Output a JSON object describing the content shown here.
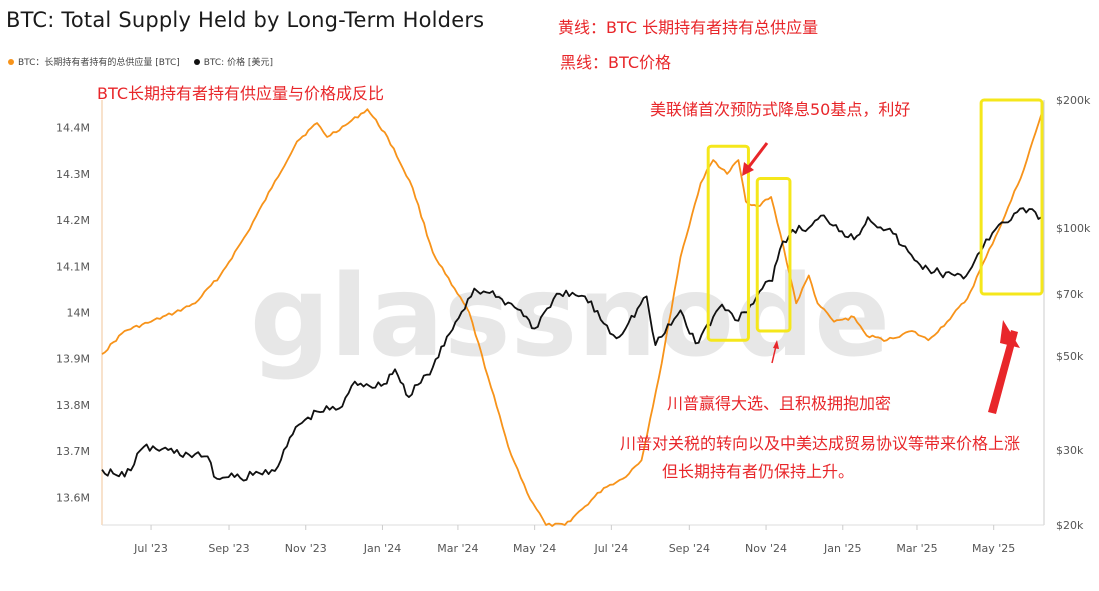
{
  "title": "BTC: Total Supply Held by Long-Term Holders",
  "legend": {
    "items": [
      {
        "label": "BTC：长期持有者持有的总供应量 [BTC]",
        "color": "#f7931a"
      },
      {
        "label": "BTC: 价格 [美元]",
        "color": "#111111"
      }
    ]
  },
  "watermark": "glassnode",
  "annotations": {
    "yellow_line_note": "黄线：BTC 长期持有者持有总供应量",
    "black_line_note": "黑线：BTC价格",
    "inverse_note": "BTC长期持有者持有供应量与价格成反比",
    "fed_note": "美联储首次预防式降息50基点，利好",
    "trump_note": "川普赢得大选、且积极拥抱加密",
    "tariff_note_1": "川普对关税的转向以及中美达成贸易协议等带来价格上涨",
    "tariff_note_2": "但长期持有者仍保持上升。"
  },
  "colors": {
    "supply": "#f7931a",
    "price": "#111111",
    "highlight": "#f5e71b",
    "annotation": "#e8262a"
  },
  "chart_data": {
    "type": "line",
    "x_tick_labels": [
      "Jul '23",
      "Sep '23",
      "Nov '23",
      "Jan '24",
      "Mar '24",
      "May '24",
      "Jul '24",
      "Sep '24",
      "Nov '24",
      "Jan '25",
      "Mar '25",
      "May '25"
    ],
    "y_left_ticks": [
      "13.6M",
      "13.7M",
      "13.8M",
      "13.9M",
      "14M",
      "14.1M",
      "14.2M",
      "14.3M",
      "14.4M"
    ],
    "y_right_ticks": [
      "$20k",
      "$30k",
      "$50k",
      "$70k",
      "$100k",
      "$200k"
    ],
    "y_right_scale": "log",
    "ylim_left": [
      13.54,
      14.46
    ],
    "ylim_right": [
      20000,
      200000
    ],
    "xlim": [
      "2023-05-23",
      "2025-06-10"
    ],
    "series": [
      {
        "name": "BTC：长期持有者持有的总供应量 [BTC]",
        "axis": "left",
        "points": [
          [
            "2023-05-23",
            13.91
          ],
          [
            "2023-06-10",
            13.96
          ],
          [
            "2023-07-01",
            13.98
          ],
          [
            "2023-07-20",
            14.0
          ],
          [
            "2023-08-05",
            14.02
          ],
          [
            "2023-08-25",
            14.08
          ],
          [
            "2023-09-15",
            14.17
          ],
          [
            "2023-10-05",
            14.27
          ],
          [
            "2023-10-25",
            14.37
          ],
          [
            "2023-11-10",
            14.41
          ],
          [
            "2023-11-18",
            14.38
          ],
          [
            "2023-12-05",
            14.41
          ],
          [
            "2023-12-20",
            14.44
          ],
          [
            "2024-01-05",
            14.38
          ],
          [
            "2024-01-25",
            14.27
          ],
          [
            "2024-02-10",
            14.13
          ],
          [
            "2024-02-25",
            14.06
          ],
          [
            "2024-03-10",
            14.0
          ],
          [
            "2024-03-25",
            13.86
          ],
          [
            "2024-04-10",
            13.71
          ],
          [
            "2024-04-25",
            13.61
          ],
          [
            "2024-05-10",
            13.54
          ],
          [
            "2024-05-25",
            13.54
          ],
          [
            "2024-06-10",
            13.58
          ],
          [
            "2024-06-25",
            13.62
          ],
          [
            "2024-07-10",
            13.64
          ],
          [
            "2024-07-25",
            13.68
          ],
          [
            "2024-08-10",
            13.89
          ],
          [
            "2024-08-25",
            14.12
          ],
          [
            "2024-09-10",
            14.28
          ],
          [
            "2024-09-20",
            14.33
          ],
          [
            "2024-10-01",
            14.3
          ],
          [
            "2024-10-10",
            14.33
          ],
          [
            "2024-10-16",
            14.24
          ],
          [
            "2024-10-25",
            14.23
          ],
          [
            "2024-11-05",
            14.25
          ],
          [
            "2024-11-15",
            14.14
          ],
          [
            "2024-11-25",
            14.02
          ],
          [
            "2024-12-05",
            14.08
          ],
          [
            "2024-12-12",
            14.02
          ],
          [
            "2024-12-25",
            13.98
          ],
          [
            "2025-01-10",
            13.99
          ],
          [
            "2025-01-20",
            13.95
          ],
          [
            "2025-02-05",
            13.94
          ],
          [
            "2025-02-25",
            13.96
          ],
          [
            "2025-03-10",
            13.94
          ],
          [
            "2025-03-25",
            13.98
          ],
          [
            "2025-04-10",
            14.03
          ],
          [
            "2025-04-25",
            14.12
          ],
          [
            "2025-05-10",
            14.21
          ],
          [
            "2025-05-25",
            14.31
          ],
          [
            "2025-06-08",
            14.43
          ]
        ]
      },
      {
        "name": "BTC: 价格 [美元]",
        "axis": "right",
        "points": [
          [
            "2023-05-23",
            27000
          ],
          [
            "2023-06-10",
            26000
          ],
          [
            "2023-06-25",
            30500
          ],
          [
            "2023-07-10",
            30200
          ],
          [
            "2023-07-31",
            29300
          ],
          [
            "2023-08-15",
            29000
          ],
          [
            "2023-08-20",
            26000
          ],
          [
            "2023-09-10",
            25800
          ],
          [
            "2023-09-25",
            26500
          ],
          [
            "2023-10-10",
            27500
          ],
          [
            "2023-10-24",
            34000
          ],
          [
            "2023-11-10",
            37000
          ],
          [
            "2023-11-30",
            38000
          ],
          [
            "2023-12-10",
            43500
          ],
          [
            "2023-12-31",
            42500
          ],
          [
            "2024-01-11",
            46500
          ],
          [
            "2024-01-22",
            40000
          ],
          [
            "2024-02-10",
            47000
          ],
          [
            "2024-02-28",
            60000
          ],
          [
            "2024-03-14",
            72000
          ],
          [
            "2024-04-05",
            68000
          ],
          [
            "2024-04-20",
            64000
          ],
          [
            "2024-05-01",
            58000
          ],
          [
            "2024-05-21",
            70000
          ],
          [
            "2024-06-10",
            69000
          ],
          [
            "2024-07-05",
            55000
          ],
          [
            "2024-07-29",
            69000
          ],
          [
            "2024-08-05",
            53000
          ],
          [
            "2024-08-25",
            64000
          ],
          [
            "2024-09-06",
            53500
          ],
          [
            "2024-09-27",
            66000
          ],
          [
            "2024-10-10",
            60500
          ],
          [
            "2024-10-29",
            72000
          ],
          [
            "2024-11-06",
            75000
          ],
          [
            "2024-11-12",
            89000
          ],
          [
            "2024-11-22",
            99000
          ],
          [
            "2024-12-05",
            100000
          ],
          [
            "2024-12-17",
            107000
          ],
          [
            "2025-01-10",
            94000
          ],
          [
            "2025-01-21",
            106000
          ],
          [
            "2025-02-10",
            97000
          ],
          [
            "2025-02-27",
            84000
          ],
          [
            "2025-03-10",
            80000
          ],
          [
            "2025-04-07",
            76000
          ],
          [
            "2025-04-25",
            94000
          ],
          [
            "2025-05-10",
            103000
          ],
          [
            "2025-05-22",
            111000
          ],
          [
            "2025-06-08",
            106000
          ]
        ]
      }
    ],
    "highlight_ranges": [
      [
        "2024-09-16",
        "2024-10-18",
        14.36,
        13.94
      ],
      [
        "2024-10-25",
        "2024-11-20",
        14.29,
        13.96
      ],
      [
        "2025-04-21",
        "2025-06-10",
        14.46,
        14.04
      ]
    ]
  }
}
